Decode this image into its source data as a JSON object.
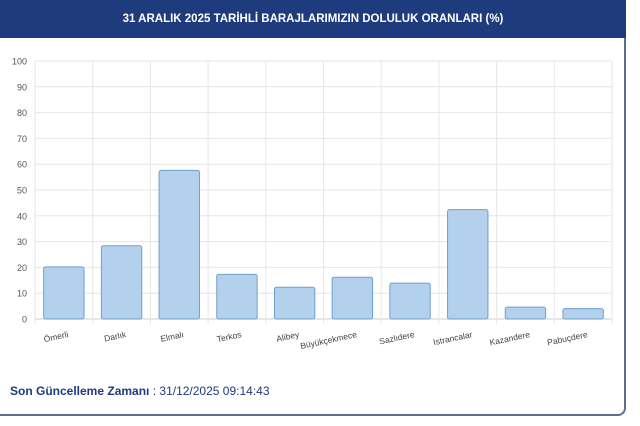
{
  "header": {
    "title": "31 ARALIK 2025 TARİHLİ BARAJLARIMIZIN DOLULUK ORANLARI (%)"
  },
  "footer": {
    "label": "Son Güncelleme Zamanı",
    "separator": " : ",
    "value": "31/12/2025 09:14:43"
  },
  "chart_data": {
    "type": "bar",
    "categories": [
      "Ömerli",
      "Darlık",
      "Elmalı",
      "Terkos",
      "Alibey",
      "Büyükçekmece",
      "Sazlıdere",
      "Istrancalar",
      "Kazandere",
      "Pabuçdere"
    ],
    "values": [
      20.2,
      28.4,
      57.6,
      17.3,
      12.3,
      16.2,
      13.9,
      42.4,
      4.6,
      4.0
    ],
    "ylim": [
      0,
      100
    ],
    "yticks": [
      0,
      10,
      20,
      30,
      40,
      50,
      60,
      70,
      80,
      90,
      100
    ],
    "grid": true,
    "bar_color": "#b3d1ed",
    "bar_border": "#6f9fcc"
  }
}
